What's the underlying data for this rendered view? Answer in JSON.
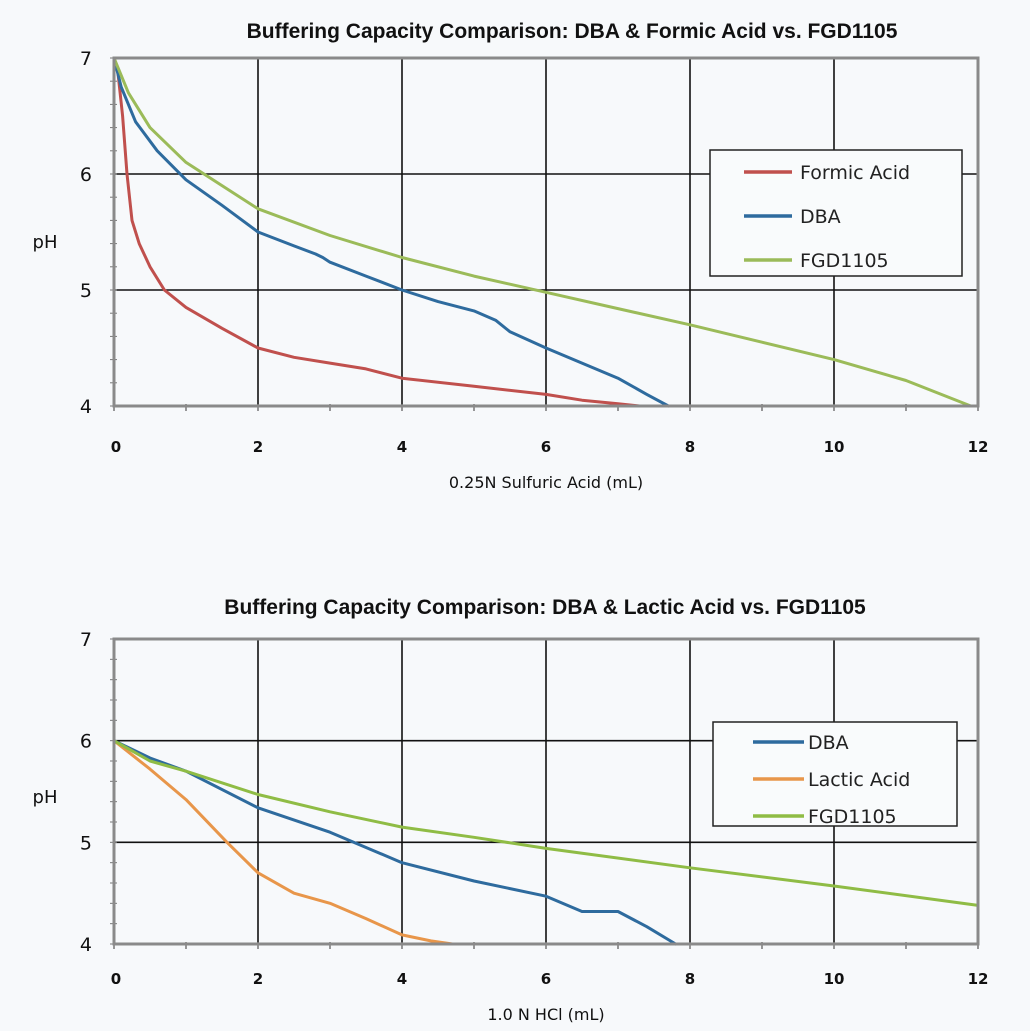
{
  "chart_data": [
    {
      "type": "line",
      "title": "Buffering Capacity Comparison: DBA & Formic Acid vs. FGD1105",
      "xlabel": "0.25N Sulfuric Acid (mL)",
      "ylabel": "pH",
      "xlim": [
        0,
        12
      ],
      "ylim": [
        4,
        7
      ],
      "xticks": [
        "0",
        "2",
        "4",
        "6",
        "8",
        "10",
        "12"
      ],
      "yticks": [
        "4",
        "5",
        "6",
        "7"
      ],
      "grid": true,
      "legend": "right",
      "series": [
        {
          "name": "Formic Acid",
          "color": "#c0504d",
          "x": [
            0,
            0.05,
            0.12,
            0.18,
            0.25,
            0.35,
            0.5,
            0.7,
            1.0,
            1.5,
            2.0,
            2.5,
            3.0,
            3.5,
            4.0,
            5.0,
            6.0,
            6.5,
            7.0,
            7.3
          ],
          "y": [
            7.0,
            6.9,
            6.5,
            6.0,
            5.6,
            5.4,
            5.2,
            5.0,
            4.85,
            4.67,
            4.5,
            4.42,
            4.37,
            4.32,
            4.24,
            4.17,
            4.1,
            4.05,
            4.02,
            4.0
          ]
        },
        {
          "name": "DBA",
          "color": "#2e6b9e",
          "x": [
            0,
            0.1,
            0.3,
            0.6,
            1.0,
            1.5,
            2.0,
            2.5,
            2.8,
            2.9,
            3.0,
            3.5,
            4.0,
            4.5,
            5.0,
            5.3,
            5.5,
            6.0,
            6.5,
            7.0,
            7.4,
            7.7
          ],
          "y": [
            7.0,
            6.75,
            6.45,
            6.2,
            5.95,
            5.73,
            5.5,
            5.38,
            5.31,
            5.28,
            5.24,
            5.12,
            5.0,
            4.9,
            4.82,
            4.74,
            4.64,
            4.5,
            4.37,
            4.24,
            4.1,
            4.0
          ]
        },
        {
          "name": "FGD1105",
          "color": "#9bbb59",
          "x": [
            0,
            0.2,
            0.5,
            1.0,
            1.5,
            2.0,
            3.0,
            4.0,
            5.0,
            6.0,
            7.0,
            8.0,
            9.0,
            10.0,
            11.0,
            11.9
          ],
          "y": [
            7.0,
            6.7,
            6.4,
            6.1,
            5.9,
            5.7,
            5.47,
            5.28,
            5.12,
            4.98,
            4.84,
            4.7,
            4.55,
            4.4,
            4.22,
            4.0
          ]
        }
      ]
    },
    {
      "type": "line",
      "title": "Buffering Capacity Comparison: DBA & Lactic Acid vs. FGD1105",
      "xlabel": "1.0 N HCl (mL)",
      "ylabel": "pH",
      "xlim": [
        0,
        12
      ],
      "ylim": [
        4,
        7
      ],
      "xticks": [
        "0",
        "2",
        "4",
        "6",
        "8",
        "10",
        "12"
      ],
      "yticks": [
        "4",
        "5",
        "6",
        "7"
      ],
      "grid": true,
      "legend": "right",
      "series": [
        {
          "name": "DBA",
          "color": "#2e6b9e",
          "x": [
            0,
            0.5,
            1.0,
            2.0,
            3.0,
            4.0,
            5.0,
            6.0,
            6.5,
            7.0,
            7.4,
            7.8
          ],
          "y": [
            6.0,
            5.83,
            5.7,
            5.34,
            5.1,
            4.8,
            4.62,
            4.47,
            4.32,
            4.32,
            4.17,
            4.0
          ]
        },
        {
          "name": "Lactic Acid",
          "color": "#e8964a",
          "x": [
            0,
            0.5,
            1.0,
            1.57,
            2.0,
            2.5,
            3.0,
            3.5,
            4.0,
            4.4,
            4.7
          ],
          "y": [
            6.0,
            5.72,
            5.42,
            5.0,
            4.7,
            4.5,
            4.4,
            4.25,
            4.09,
            4.03,
            4.0
          ]
        },
        {
          "name": "FGD1105",
          "color": "#8fbc45",
          "x": [
            0,
            0.5,
            1.0,
            2.0,
            3.0,
            4.0,
            5.0,
            6.0,
            8.0,
            10.0,
            12.0
          ],
          "y": [
            6.0,
            5.8,
            5.7,
            5.47,
            5.3,
            5.15,
            5.05,
            4.94,
            4.75,
            4.57,
            4.38
          ]
        }
      ]
    }
  ]
}
